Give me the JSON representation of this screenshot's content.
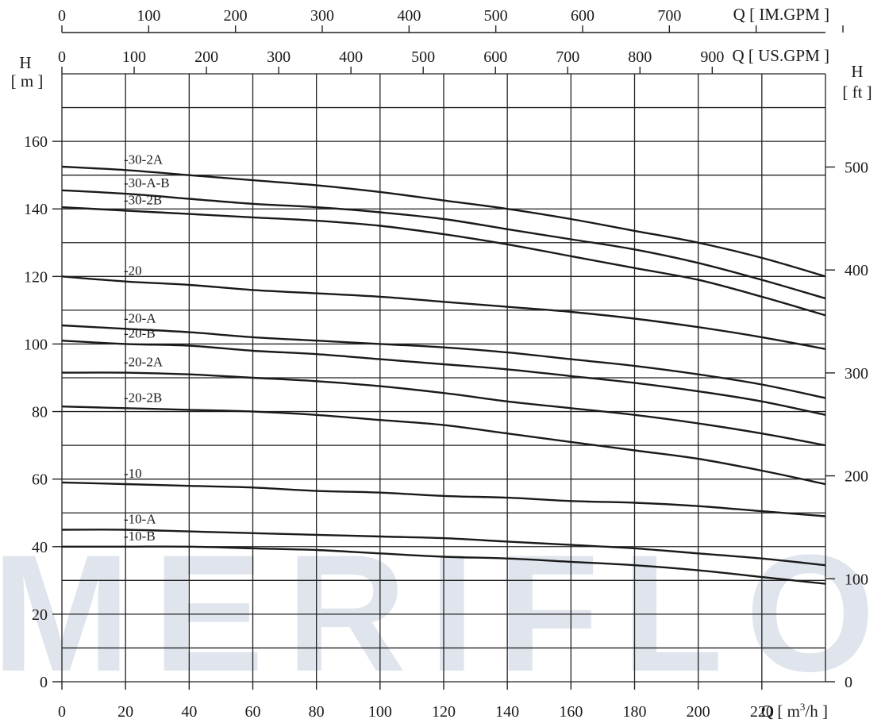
{
  "watermark": {
    "text": "MERIFLO",
    "color": "#d6dde8",
    "accent_color": "#f6c9cc"
  },
  "colors": {
    "line": "#1a1a1a",
    "grid": "#222222",
    "background": "#ffffff"
  },
  "chart_data": {
    "type": "line",
    "title": "",
    "grid": true,
    "x_axis": {
      "label": "Q [ m³/h ]",
      "label_main": "Q [ m",
      "label_sup": "3",
      "label_end": "/h ]",
      "lim": [
        0,
        240
      ],
      "ticks": [
        0,
        20,
        40,
        60,
        80,
        100,
        120,
        140,
        160,
        180,
        200,
        220
      ]
    },
    "x_axis_top_usgpm": {
      "label": "Q [ US.GPM ]",
      "ticks": [
        0,
        100,
        200,
        300,
        400,
        500,
        600,
        700,
        800,
        900
      ]
    },
    "x_axis_top_imgpm": {
      "label": "Q [ IM.GPM ]",
      "ticks": [
        0,
        100,
        200,
        300,
        400,
        500,
        600,
        700
      ]
    },
    "y_axis_left": {
      "label_line1": "H",
      "label_line2": "[ m ]",
      "lim": [
        0,
        180
      ],
      "ticks": [
        0,
        20,
        40,
        60,
        80,
        100,
        120,
        140,
        160
      ]
    },
    "y_axis_right": {
      "label_line1": "H",
      "label_line2": "[ ft ]",
      "ticks": [
        0,
        100,
        200,
        300,
        400,
        500
      ]
    },
    "x": [
      0,
      20,
      40,
      60,
      80,
      100,
      120,
      140,
      160,
      180,
      200,
      220,
      240
    ],
    "series": [
      {
        "name": "-30-2A",
        "values": [
          152.5,
          151.5,
          150,
          148.5,
          147,
          145,
          142.5,
          140,
          137,
          133.5,
          130,
          125.5,
          120
        ]
      },
      {
        "name": "-30-A-B",
        "values": [
          145.5,
          144.5,
          143,
          141.5,
          140.5,
          139,
          137,
          134,
          131,
          128,
          124,
          119,
          113.5
        ]
      },
      {
        "name": "-30-2B",
        "values": [
          140.5,
          139.5,
          138.5,
          137.5,
          136.5,
          135,
          132.5,
          129.5,
          126,
          122.5,
          119,
          114,
          108.5
        ]
      },
      {
        "name": "-20",
        "values": [
          120,
          118.5,
          117.5,
          116,
          115,
          114,
          112.5,
          111,
          109.5,
          107.5,
          105,
          102,
          98.5
        ]
      },
      {
        "name": "-20-A",
        "values": [
          105.5,
          104.5,
          103.5,
          102,
          101,
          100,
          99,
          97.5,
          95.5,
          93.5,
          91,
          88,
          84
        ]
      },
      {
        "name": "-20-B",
        "values": [
          101,
          100,
          99.5,
          98,
          97,
          95.5,
          94,
          92.5,
          90.5,
          88.5,
          86,
          83,
          79
        ]
      },
      {
        "name": "-20-2A",
        "values": [
          91.5,
          91.5,
          91,
          90,
          89,
          87.5,
          85.5,
          83,
          81,
          79,
          76.5,
          73.5,
          70
        ]
      },
      {
        "name": "-20-2B",
        "values": [
          81.5,
          81,
          80.5,
          80,
          79,
          77.5,
          76,
          73.5,
          71,
          68.5,
          66,
          62.5,
          58.5
        ]
      },
      {
        "name": "-10",
        "values": [
          59,
          58.5,
          58,
          57.5,
          56.5,
          56,
          55,
          54.5,
          53.5,
          53,
          52,
          50.5,
          49
        ]
      },
      {
        "name": "-10-A",
        "values": [
          45,
          45,
          44.5,
          44,
          43.5,
          43,
          42.5,
          41.5,
          40.5,
          39.5,
          38,
          36.5,
          34.5
        ]
      },
      {
        "name": "-10-B",
        "values": [
          40,
          40,
          40,
          39.5,
          39,
          38,
          37,
          36.5,
          35.5,
          34.5,
          33,
          31,
          29
        ]
      }
    ]
  }
}
